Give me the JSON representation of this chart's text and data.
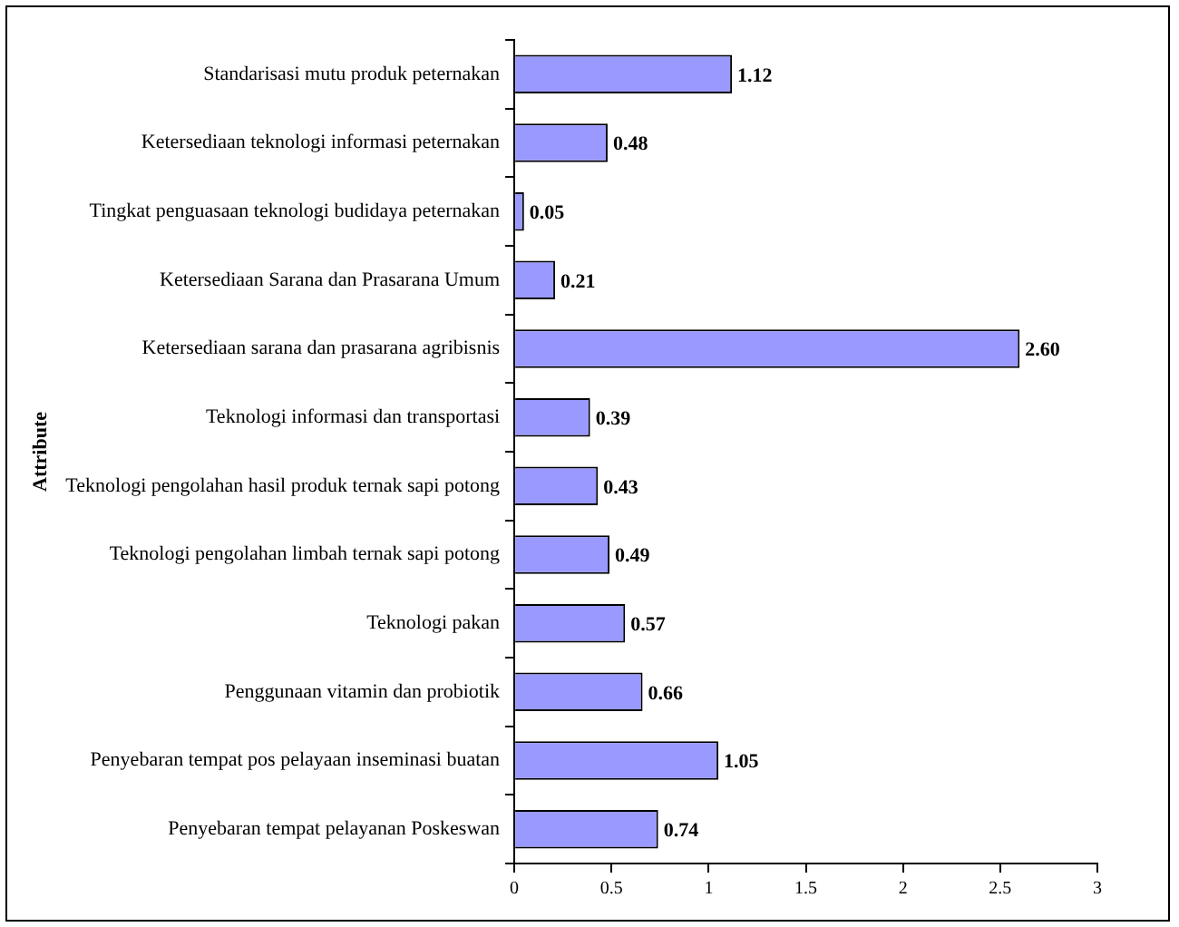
{
  "chart_data": {
    "type": "bar",
    "orientation": "horizontal",
    "ylabel": "Attribute",
    "categories": [
      "Standarisasi mutu produk peternakan",
      "Ketersediaan teknologi informasi peternakan",
      "Tingkat penguasaan teknologi budidaya peternakan",
      "Ketersediaan Sarana dan Prasarana Umum",
      "Ketersediaan sarana dan prasarana agribisnis",
      "Teknologi informasi dan transportasi",
      "Teknologi pengolahan hasil produk ternak sapi potong",
      "Teknologi pengolahan limbah ternak sapi potong",
      "Teknologi pakan",
      "Penggunaan vitamin dan probiotik",
      "Penyebaran tempat pos pelayaan inseminasi buatan",
      "Penyebaran tempat pelayanan Poskeswan"
    ],
    "values": [
      1.12,
      0.48,
      0.05,
      0.21,
      2.6,
      0.39,
      0.43,
      0.49,
      0.57,
      0.66,
      1.05,
      0.74
    ],
    "value_labels": [
      "1.12",
      "0.48",
      "0.05",
      "0.21",
      "2.60",
      "0.39",
      "0.43",
      "0.49",
      "0.57",
      "0.66",
      "1.05",
      "0.74"
    ],
    "color": "#9999ff",
    "xlim": [
      0,
      3
    ],
    "xticks": [
      0,
      0.5,
      1,
      1.5,
      2,
      2.5,
      3
    ],
    "grid": false,
    "legend": false
  }
}
